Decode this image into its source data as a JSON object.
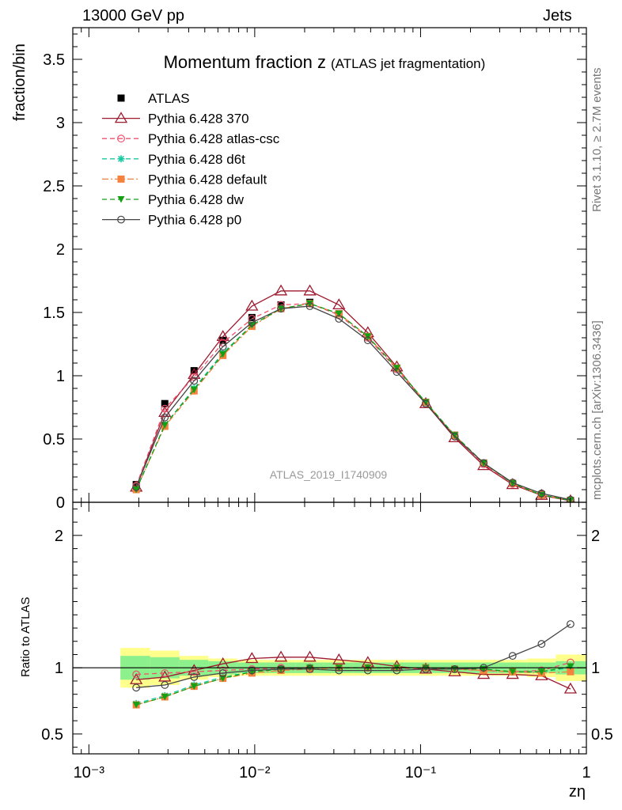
{
  "header": {
    "left": "13000 GeV pp",
    "right": "Jets"
  },
  "side_labels": {
    "rivet": "Rivet 3.1.10, ≥ 2.7M events",
    "mcplots": "mcplots.cern.ch [arXiv:1306.3436]"
  },
  "chart_data": [
    {
      "type": "line",
      "panel": "main",
      "title": "Momentum fraction z",
      "title_suffix": "(ATLAS jet fragmentation)",
      "xlabel": "zη",
      "ylabel": "fraction/bin",
      "xscale": "log",
      "xlim": [
        0.0008,
        1.0
      ],
      "ylim": [
        0,
        3.75
      ],
      "x_ticks": [
        "10⁻³",
        "10⁻²",
        "10⁻¹",
        "1"
      ],
      "y_ticks": [
        "0",
        "0.5",
        "1",
        "1.5",
        "2",
        "2.5",
        "3",
        "3.5"
      ],
      "analysis_label": "ATLAS_2019_I1740909",
      "legend_position": "top-left",
      "x": [
        0.00193,
        0.00287,
        0.00431,
        0.00643,
        0.00962,
        0.0144,
        0.0215,
        0.0322,
        0.0481,
        0.0719,
        0.1075,
        0.1606,
        0.2401,
        0.3589,
        0.5365,
        0.8019
      ],
      "series": [
        {
          "name": "ATLAS",
          "color": "#000000",
          "marker": "square",
          "line": "none",
          "values": [
            0.14,
            0.78,
            1.04,
            1.28,
            1.46,
            1.56,
            1.58,
            1.49,
            1.31,
            1.06,
            0.79,
            0.53,
            0.31,
            0.15,
            0.06,
            0.015
          ]
        },
        {
          "name": "Pythia 6.428 370",
          "color": "#9e1a2e",
          "marker": "triangle-open",
          "line": "solid",
          "values": [
            0.12,
            0.71,
            1.01,
            1.31,
            1.55,
            1.67,
            1.67,
            1.56,
            1.34,
            1.07,
            0.78,
            0.51,
            0.29,
            0.14,
            0.055,
            0.012
          ]
        },
        {
          "name": "Pythia 6.428 atlas-csc",
          "color": "#f0506e",
          "marker": "circle-open",
          "line": "dashed",
          "values": [
            0.13,
            0.74,
            0.99,
            1.26,
            1.45,
            1.56,
            1.57,
            1.48,
            1.3,
            1.05,
            0.78,
            0.52,
            0.3,
            0.145,
            0.058,
            0.015
          ]
        },
        {
          "name": "Pythia 6.428 d6t",
          "color": "#17c9a0",
          "marker": "star",
          "line": "dashed",
          "values": [
            0.1,
            0.61,
            0.9,
            1.18,
            1.4,
            1.53,
            1.57,
            1.49,
            1.31,
            1.06,
            0.79,
            0.53,
            0.31,
            0.15,
            0.058,
            0.015
          ]
        },
        {
          "name": "Pythia 6.428 default",
          "color": "#f5823c",
          "marker": "square",
          "line": "dashdot",
          "values": [
            0.1,
            0.6,
            0.88,
            1.16,
            1.39,
            1.53,
            1.57,
            1.49,
            1.31,
            1.06,
            0.79,
            0.53,
            0.31,
            0.15,
            0.058,
            0.015
          ]
        },
        {
          "name": "Pythia 6.428 dw",
          "color": "#14a014",
          "marker": "triangle-down",
          "line": "dashed",
          "values": [
            0.1,
            0.61,
            0.89,
            1.17,
            1.4,
            1.53,
            1.57,
            1.49,
            1.31,
            1.06,
            0.79,
            0.53,
            0.31,
            0.15,
            0.058,
            0.015
          ]
        },
        {
          "name": "Pythia 6.428 p0",
          "color": "#444444",
          "marker": "circle-open",
          "line": "solid",
          "values": [
            0.12,
            0.67,
            0.96,
            1.23,
            1.42,
            1.53,
            1.55,
            1.45,
            1.28,
            1.03,
            0.78,
            0.52,
            0.31,
            0.155,
            0.07,
            0.02
          ]
        }
      ]
    },
    {
      "type": "line",
      "panel": "ratio",
      "xlabel": "zη",
      "ylabel": "Ratio to ATLAS",
      "xscale": "log",
      "xlim": [
        0.0008,
        1.0
      ],
      "ylim": [
        0.35,
        2.25
      ],
      "y_ticks": [
        "0.5",
        "1",
        "2"
      ],
      "reference_line": 1.0,
      "bands": {
        "inner_color": "#8cf08c",
        "outer_color": "#ffff8c",
        "x_edges": [
          0.00155,
          0.00234,
          0.00352,
          0.00525,
          0.00785,
          0.01175,
          0.01757,
          0.02626,
          0.03925,
          0.05866,
          0.08768,
          0.13106,
          0.19587,
          0.29271,
          0.43751,
          0.65384,
          1.0
        ],
        "inner": [
          0.09,
          0.08,
          0.06,
          0.05,
          0.04,
          0.04,
          0.04,
          0.04,
          0.04,
          0.04,
          0.04,
          0.04,
          0.04,
          0.04,
          0.04,
          0.05
        ],
        "outer": [
          0.15,
          0.13,
          0.09,
          0.07,
          0.06,
          0.06,
          0.06,
          0.06,
          0.06,
          0.06,
          0.06,
          0.06,
          0.06,
          0.06,
          0.07,
          0.1
        ]
      },
      "x": [
        0.00193,
        0.00287,
        0.00431,
        0.00643,
        0.00962,
        0.0144,
        0.0215,
        0.0322,
        0.0481,
        0.0719,
        0.1075,
        0.1606,
        0.2401,
        0.3589,
        0.5365,
        0.8019
      ],
      "series": [
        {
          "name": "Pythia 6.428 370",
          "values": [
            0.91,
            0.93,
            0.98,
            1.03,
            1.07,
            1.08,
            1.08,
            1.06,
            1.04,
            1.01,
            0.99,
            0.97,
            0.95,
            0.95,
            0.94,
            0.84
          ]
        },
        {
          "name": "Pythia 6.428 atlas-csc",
          "values": [
            0.95,
            0.96,
            0.97,
            0.98,
            0.99,
            1.0,
            1.0,
            1.0,
            1.0,
            1.0,
            0.99,
            0.99,
            0.98,
            0.97,
            0.98,
            1.04
          ]
        },
        {
          "name": "Pythia 6.428 d6t",
          "values": [
            0.73,
            0.79,
            0.87,
            0.93,
            0.97,
            0.99,
            1.0,
            1.0,
            1.0,
            1.0,
            1.0,
            0.99,
            0.99,
            0.97,
            0.97,
            1.0
          ]
        },
        {
          "name": "Pythia 6.428 default",
          "values": [
            0.72,
            0.78,
            0.86,
            0.92,
            0.96,
            0.98,
            0.99,
            1.0,
            1.0,
            1.0,
            1.0,
            0.99,
            0.98,
            0.97,
            0.96,
            0.97
          ]
        },
        {
          "name": "Pythia 6.428 dw",
          "values": [
            0.72,
            0.78,
            0.86,
            0.92,
            0.97,
            0.99,
            1.0,
            1.0,
            1.0,
            1.0,
            1.0,
            0.99,
            0.99,
            0.97,
            0.97,
            1.01
          ]
        },
        {
          "name": "Pythia 6.428 p0",
          "values": [
            0.85,
            0.87,
            0.93,
            0.96,
            0.98,
            0.99,
            0.99,
            0.98,
            0.98,
            0.98,
            0.99,
            0.99,
            1.0,
            1.09,
            1.18,
            1.33
          ]
        }
      ]
    }
  ]
}
